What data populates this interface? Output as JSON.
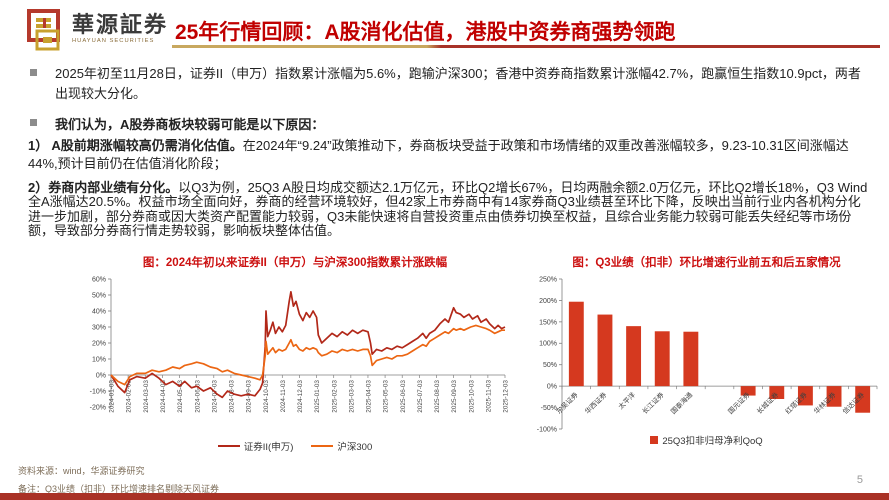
{
  "header": {
    "logo_cn": "華源証券",
    "logo_en": "HUAYUAN SECURITIES",
    "title": "25年行情回顾：A股消化估值，港股中资券商强势领跑"
  },
  "colors": {
    "title_red": "#c00000",
    "fig_title_red": "#cc1111",
    "line_dark_red": "#b22819",
    "line_orange": "#ec6613",
    "bar_red": "#d5391f",
    "underline_gold": "#c8a85f",
    "bottom_bar_red": "#a93226"
  },
  "body": {
    "bullet1": "2025年初至11月28日，证券II（申万）指数累计涨幅为5.6%，跑输沪深300；香港中资券商指数累计涨幅42.7%，跑赢恒生指数10.9pct，两者出现较大分化。",
    "bullet2": "我们认为，A股券商板块较弱可能是以下原因：",
    "point1_lead": "1）  A股前期涨幅较高仍需消化估值。",
    "point1_rest": "在2024年“9.24”政策推动下，券商板块受益于政策和市场情绪的双重改善涨幅较多，9.23-10.31区间涨幅达44%,预计目前仍在估值消化阶段；",
    "point2_lead": "2）券商内部业绩有分化。",
    "point2_rest": "以Q3为例，25Q3 A股日均成交额达2.1万亿元，环比Q2增长67%，日均两融余额2.0万亿元，环比Q2增长18%，Q3 Wind全A涨幅达20.5%。权益市场全面向好，券商的经营环境较好，但42家上市券商中有14家券商Q3业绩甚至环比下降，反映出当前行业内各机构分化进一步加剧，部分券商或因大类资产配置能力较弱，Q3未能快速将自营投资重点由债券切换至权益，且综合业务能力较弱可能丢失经纪等市场份额，导致部分券商行情走势较弱，影响板块整体估值。"
  },
  "chart_data": [
    {
      "type": "line",
      "title": "图：2024年初以来证券II（申万）与沪深300指数累计涨跌幅",
      "x_labels": [
        "2024-01-03",
        "2024-02-03",
        "2024-03-03",
        "2024-04-03",
        "2024-05-03",
        "2024-06-03",
        "2024-07-03",
        "2024-08-03",
        "2024-09-03",
        "2024-10-03",
        "2024-11-03",
        "2024-12-03",
        "2025-01-03",
        "2025-02-03",
        "2025-03-03",
        "2025-04-03",
        "2025-05-03",
        "2025-06-03",
        "2025-07-03",
        "2025-08-03",
        "2025-09-03",
        "2025-10-03",
        "2025-11-03",
        "2025-12-03"
      ],
      "ylim": [
        -20,
        60
      ],
      "ytick_values": [
        60,
        50,
        40,
        30,
        20,
        10,
        0,
        -10,
        -20
      ],
      "ytick_labels": [
        "60%",
        "50%",
        "40%",
        "30%",
        "20%",
        "10%",
        "0%",
        "-10%",
        "-20%"
      ],
      "grid": false,
      "legend_position": "bottom",
      "series": [
        {
          "name": "证券II(申万)",
          "color": "#b22819",
          "points": [
            [
              0,
              0
            ],
            [
              0.4,
              -7
            ],
            [
              0.8,
              -11
            ],
            [
              1.1,
              -3
            ],
            [
              1.5,
              -1
            ],
            [
              2,
              -2
            ],
            [
              2.4,
              1
            ],
            [
              2.8,
              -2
            ],
            [
              3.2,
              -6
            ],
            [
              3.6,
              -4
            ],
            [
              4,
              -7
            ],
            [
              4.3,
              -4
            ],
            [
              4.7,
              -8
            ],
            [
              5,
              -7
            ],
            [
              5.4,
              -10
            ],
            [
              5.8,
              -8
            ],
            [
              6.2,
              -12
            ],
            [
              6.5,
              -14
            ],
            [
              6.8,
              -10
            ],
            [
              7.2,
              -12
            ],
            [
              7.6,
              -13
            ],
            [
              8,
              -12
            ],
            [
              8.4,
              -13
            ],
            [
              8.7,
              -9
            ],
            [
              8.85,
              -5
            ],
            [
              9,
              18
            ],
            [
              9.05,
              40
            ],
            [
              9.15,
              24
            ],
            [
              9.3,
              28
            ],
            [
              9.45,
              33
            ],
            [
              9.6,
              26
            ],
            [
              9.8,
              30
            ],
            [
              10,
              27
            ],
            [
              10.2,
              31
            ],
            [
              10.4,
              46
            ],
            [
              10.5,
              52
            ],
            [
              10.65,
              43
            ],
            [
              10.8,
              46
            ],
            [
              11,
              38
            ],
            [
              11.2,
              34
            ],
            [
              11.4,
              39
            ],
            [
              11.6,
              36
            ],
            [
              11.8,
              40
            ],
            [
              12,
              36
            ],
            [
              12.1,
              25
            ],
            [
              12.3,
              20
            ],
            [
              12.6,
              23
            ],
            [
              12.9,
              26
            ],
            [
              13.2,
              24
            ],
            [
              13.5,
              27
            ],
            [
              13.8,
              25
            ],
            [
              14.1,
              28
            ],
            [
              14.4,
              26
            ],
            [
              14.7,
              28
            ],
            [
              15,
              27
            ],
            [
              15.15,
              20
            ],
            [
              15.25,
              13
            ],
            [
              15.5,
              16
            ],
            [
              15.8,
              15
            ],
            [
              16.1,
              17
            ],
            [
              16.4,
              16
            ],
            [
              16.7,
              18
            ],
            [
              17,
              17
            ],
            [
              17.3,
              19
            ],
            [
              17.6,
              21
            ],
            [
              17.9,
              23
            ],
            [
              18.2,
              26
            ],
            [
              18.4,
              23
            ],
            [
              18.6,
              26
            ],
            [
              18.9,
              28
            ],
            [
              19.2,
              32
            ],
            [
              19.5,
              35
            ],
            [
              19.7,
              33
            ],
            [
              20,
              42
            ],
            [
              20.15,
              39
            ],
            [
              20.4,
              38
            ],
            [
              20.6,
              36
            ],
            [
              20.9,
              38
            ],
            [
              21.1,
              35
            ],
            [
              21.4,
              37
            ],
            [
              21.6,
              33
            ],
            [
              21.9,
              35
            ],
            [
              22.1,
              32
            ],
            [
              22.4,
              29
            ],
            [
              22.6,
              31
            ],
            [
              22.8,
              29
            ],
            [
              23,
              30
            ]
          ]
        },
        {
          "name": "沪深300",
          "color": "#ec6613",
          "points": [
            [
              0,
              0
            ],
            [
              0.4,
              -4
            ],
            [
              0.8,
              -6
            ],
            [
              1.1,
              -1
            ],
            [
              1.5,
              1
            ],
            [
              2,
              1
            ],
            [
              2.4,
              3
            ],
            [
              2.8,
              2
            ],
            [
              3.2,
              3
            ],
            [
              3.6,
              5
            ],
            [
              4,
              4
            ],
            [
              4.3,
              6
            ],
            [
              4.7,
              7
            ],
            [
              5,
              8
            ],
            [
              5.4,
              7
            ],
            [
              5.8,
              5
            ],
            [
              6.2,
              4
            ],
            [
              6.5,
              2
            ],
            [
              6.8,
              3
            ],
            [
              7.2,
              1
            ],
            [
              7.6,
              0
            ],
            [
              8,
              -1
            ],
            [
              8.4,
              -2
            ],
            [
              8.7,
              -3
            ],
            [
              8.85,
              0
            ],
            [
              9,
              12
            ],
            [
              9.05,
              21
            ],
            [
              9.15,
              13
            ],
            [
              9.3,
              15
            ],
            [
              9.45,
              17
            ],
            [
              9.6,
              14
            ],
            [
              9.8,
              16
            ],
            [
              10,
              15
            ],
            [
              10.2,
              16
            ],
            [
              10.4,
              20
            ],
            [
              10.5,
              22
            ],
            [
              10.65,
              18
            ],
            [
              10.8,
              19
            ],
            [
              11,
              16
            ],
            [
              11.2,
              15
            ],
            [
              11.4,
              17
            ],
            [
              11.6,
              16
            ],
            [
              11.8,
              17
            ],
            [
              12,
              16
            ],
            [
              12.1,
              14
            ],
            [
              12.3,
              12
            ],
            [
              12.6,
              13
            ],
            [
              12.9,
              15
            ],
            [
              13.2,
              14
            ],
            [
              13.5,
              16
            ],
            [
              13.8,
              15
            ],
            [
              14.1,
              16
            ],
            [
              14.4,
              15
            ],
            [
              14.7,
              16
            ],
            [
              15,
              16
            ],
            [
              15.15,
              12
            ],
            [
              15.25,
              6
            ],
            [
              15.5,
              9
            ],
            [
              15.8,
              10
            ],
            [
              16.1,
              11
            ],
            [
              16.4,
              10
            ],
            [
              16.7,
              12
            ],
            [
              17,
              12
            ],
            [
              17.3,
              13
            ],
            [
              17.6,
              15
            ],
            [
              17.9,
              17
            ],
            [
              18.2,
              19
            ],
            [
              18.4,
              18
            ],
            [
              18.6,
              21
            ],
            [
              18.9,
              23
            ],
            [
              19.2,
              25
            ],
            [
              19.5,
              27
            ],
            [
              19.7,
              26
            ],
            [
              20,
              29
            ],
            [
              20.15,
              28
            ],
            [
              20.4,
              29
            ],
            [
              20.6,
              28
            ],
            [
              21,
              30
            ],
            [
              21.3,
              31
            ],
            [
              21.6,
              30
            ],
            [
              21.9,
              29
            ],
            [
              22.1,
              28
            ],
            [
              22.4,
              26
            ],
            [
              22.6,
              27
            ],
            [
              22.8,
              28
            ],
            [
              23,
              28
            ]
          ]
        }
      ]
    },
    {
      "type": "bar",
      "title": "图：Q3业绩（扣非）环比增速行业前五和后五家情况",
      "categories": [
        "东吴证券",
        "华西证券",
        "太平洋",
        "长江证券",
        "国泰海通",
        "国元证券",
        "长城证券",
        "红塔证券",
        "华林证券",
        "信达证券"
      ],
      "values": [
        197,
        167,
        140,
        128,
        127,
        -22,
        -30,
        -45,
        -48,
        -62
      ],
      "group_gap_after_index": 4,
      "ylim": [
        -100,
        250
      ],
      "ytick_values": [
        250,
        200,
        150,
        100,
        50,
        0,
        -50,
        -100
      ],
      "ytick_labels": [
        "250%",
        "200%",
        "150%",
        "100%",
        "50%",
        "0%",
        "-50%",
        "-100%"
      ],
      "bar_color": "#d5391f",
      "grid": false,
      "legend": "25Q3扣非归母净利QoQ",
      "legend_position": "bottom"
    }
  ],
  "footer": {
    "source": "资料来源：wind，华源证券研究",
    "note": "备注：Q3业绩（扣非）环比增速排名剔除天风证券",
    "page_number": "5"
  }
}
